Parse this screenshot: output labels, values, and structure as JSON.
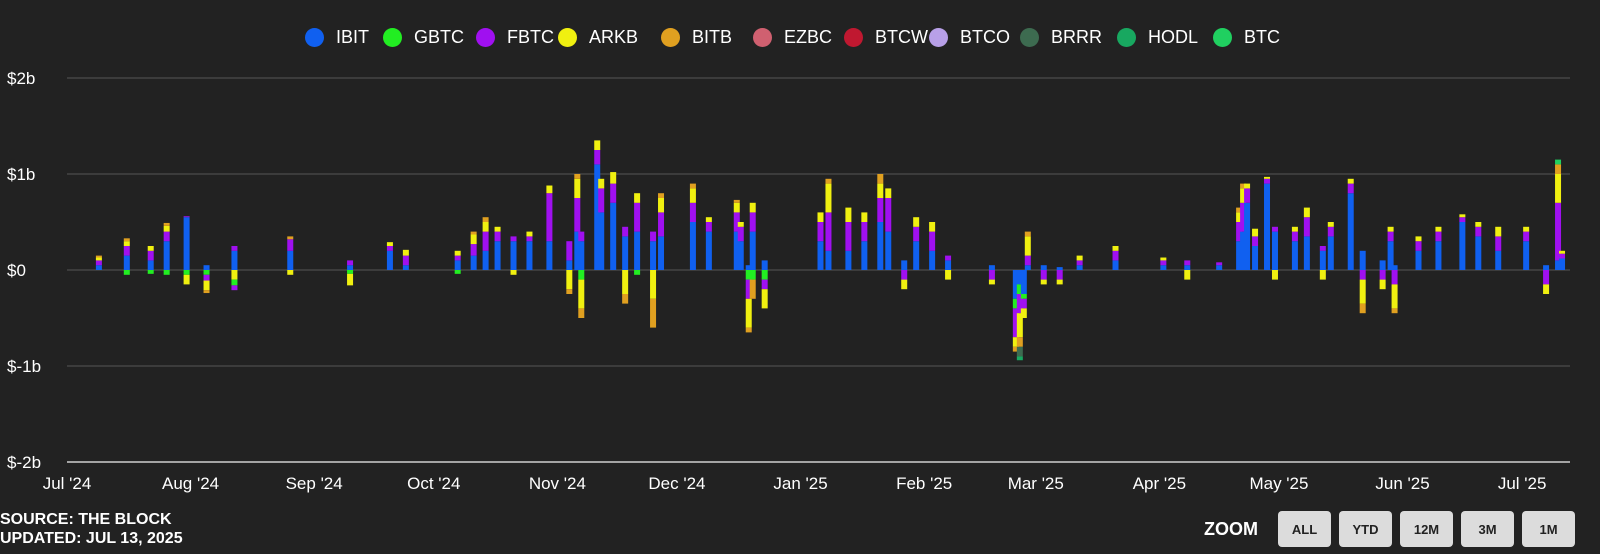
{
  "chart_data": {
    "type": "bar",
    "stacked": true,
    "title": "",
    "xlabel": "",
    "ylabel": "",
    "ylim": [
      -2,
      2
    ],
    "y_unit": "billion USD",
    "yticks": [
      "$2b",
      "$1b",
      "$0",
      "$-1b",
      "$-2b"
    ],
    "yticks_values": [
      2,
      1,
      0,
      -1,
      -2
    ],
    "xlim": [
      "2024-07-01",
      "2025-07-13"
    ],
    "xticks": [
      "Jul '24",
      "Aug '24",
      "Sep '24",
      "Oct '24",
      "Nov '24",
      "Dec '24",
      "Jan '25",
      "Feb '25",
      "Mar '25",
      "Apr '25",
      "May '25",
      "Jun '25",
      "Jul '25"
    ],
    "xticks_values": [
      "2024-07-01",
      "2024-08-01",
      "2024-09-01",
      "2024-10-01",
      "2024-11-01",
      "2024-12-01",
      "2025-01-01",
      "2025-02-01",
      "2025-03-01",
      "2025-04-01",
      "2025-05-01",
      "2025-06-01",
      "2025-07-01"
    ],
    "grid": true,
    "legend_position": "top",
    "series": [
      {
        "name": "IBIT",
        "color": "#1060f0"
      },
      {
        "name": "GBTC",
        "color": "#22ee22"
      },
      {
        "name": "FBTC",
        "color": "#a010f0"
      },
      {
        "name": "ARKB",
        "color": "#f0f010"
      },
      {
        "name": "BITB",
        "color": "#e0a020"
      },
      {
        "name": "EZBC",
        "color": "#d06070"
      },
      {
        "name": "BTCW",
        "color": "#c01830"
      },
      {
        "name": "BTCO",
        "color": "#b8a0e8"
      },
      {
        "name": "BRRR",
        "color": "#3d6b50"
      },
      {
        "name": "HODL",
        "color": "#18a860"
      },
      {
        "name": "BTC",
        "color": "#20d060"
      }
    ],
    "dates": [
      "2024-07-09",
      "2024-07-16",
      "2024-07-22",
      "2024-07-26",
      "2024-07-31",
      "2024-08-05",
      "2024-08-12",
      "2024-08-26",
      "2024-09-10",
      "2024-09-20",
      "2024-09-24",
      "2024-10-07",
      "2024-10-11",
      "2024-10-14",
      "2024-10-17",
      "2024-10-21",
      "2024-10-25",
      "2024-10-30",
      "2024-11-04",
      "2024-11-06",
      "2024-11-07",
      "2024-11-11",
      "2024-11-12",
      "2024-11-15",
      "2024-11-18",
      "2024-11-21",
      "2024-11-25",
      "2024-11-27",
      "2024-12-05",
      "2024-12-09",
      "2024-12-16",
      "2024-12-17",
      "2024-12-19",
      "2024-12-20",
      "2024-12-23",
      "2025-01-06",
      "2025-01-08",
      "2025-01-13",
      "2025-01-17",
      "2025-01-21",
      "2025-01-23",
      "2025-01-27",
      "2025-01-30",
      "2025-02-03",
      "2025-02-07",
      "2025-02-18",
      "2025-02-24",
      "2025-02-25",
      "2025-02-26",
      "2025-02-27",
      "2025-03-03",
      "2025-03-07",
      "2025-03-12",
      "2025-03-21",
      "2025-04-02",
      "2025-04-08",
      "2025-04-16",
      "2025-04-21",
      "2025-04-22",
      "2025-04-23",
      "2025-04-25",
      "2025-04-28",
      "2025-04-30",
      "2025-05-05",
      "2025-05-08",
      "2025-05-12",
      "2025-05-14",
      "2025-05-19",
      "2025-05-22",
      "2025-05-27",
      "2025-05-29",
      "2025-05-30",
      "2025-06-05",
      "2025-06-10",
      "2025-06-16",
      "2025-06-20",
      "2025-06-25",
      "2025-07-02",
      "2025-07-07",
      "2025-07-10",
      "2025-07-11"
    ],
    "stacks": [
      {
        "IBIT": 0.05,
        "FBTC": 0.05,
        "ARKB": 0.03,
        "BITB": 0.02
      },
      {
        "IBIT": 0.15,
        "FBTC": 0.1,
        "ARKB": 0.05,
        "BITB": 0.03,
        "GBTC": -0.05
      },
      {
        "IBIT": 0.1,
        "FBTC": 0.1,
        "ARKB": 0.05,
        "GBTC": -0.04
      },
      {
        "IBIT": 0.3,
        "FBTC": 0.1,
        "ARKB": 0.06,
        "BITB": 0.03,
        "GBTC": -0.05
      },
      {
        "IBIT": 0.55,
        "FBTC": 0.01,
        "GBTC": -0.05,
        "ARKB": -0.1
      },
      {
        "IBIT": 0.05,
        "GBTC": -0.05,
        "FBTC": -0.06,
        "ARKB": -0.1,
        "BITB": -0.03
      },
      {
        "IBIT": 0.2,
        "FBTC": 0.05,
        "ARKB": -0.1,
        "GBTC": -0.06,
        "FBTC_out": -0.05
      },
      {
        "IBIT": 0.2,
        "FBTC": 0.12,
        "BITB": 0.03,
        "ARKB": -0.05
      },
      {
        "IBIT": 0.05,
        "FBTC": 0.05,
        "GBTC": -0.04,
        "ARKB": -0.12
      },
      {
        "IBIT": 0.2,
        "FBTC": 0.05,
        "ARKB": 0.04
      },
      {
        "IBIT": 0.05,
        "FBTC": 0.1,
        "ARKB": 0.06
      },
      {
        "IBIT": 0.1,
        "FBTC": 0.05,
        "ARKB": 0.05,
        "GBTC": -0.04
      },
      {
        "IBIT": 0.15,
        "FBTC": 0.12,
        "ARKB": 0.1,
        "BITB": 0.03
      },
      {
        "IBIT": 0.2,
        "FBTC": 0.2,
        "ARKB": 0.1,
        "BITB": 0.05
      },
      {
        "IBIT": 0.3,
        "FBTC": 0.1,
        "ARKB": 0.05
      },
      {
        "IBIT": 0.3,
        "FBTC": 0.05,
        "ARKB": -0.05
      },
      {
        "IBIT": 0.3,
        "FBTC": 0.05,
        "ARKB": 0.05
      },
      {
        "IBIT": 0.3,
        "FBTC": 0.5,
        "ARKB": 0.08
      },
      {
        "IBIT": 0.1,
        "FBTC": 0.2,
        "ARKB": -0.2,
        "BITB": -0.05
      },
      {
        "IBIT": 0.4,
        "FBTC": 0.35,
        "ARKB": 0.2,
        "BITB": 0.05
      },
      {
        "IBIT": 0.3,
        "FBTC": 0.1,
        "GBTC": -0.1,
        "ARKB": -0.3,
        "BITB": -0.1
      },
      {
        "IBIT": 1.1,
        "FBTC": 0.15,
        "ARKB": 0.1
      },
      {
        "IBIT": 0.6,
        "FBTC": 0.25,
        "ARKB": 0.1
      },
      {
        "IBIT": 0.7,
        "FBTC": 0.2,
        "ARKB": 0.12
      },
      {
        "IBIT": 0.35,
        "FBTC": 0.1,
        "ARKB": -0.25,
        "BITB": -0.1
      },
      {
        "IBIT": 0.4,
        "FBTC": 0.3,
        "ARKB": 0.1,
        "GBTC": -0.05
      },
      {
        "IBIT": 0.3,
        "FBTC": 0.1,
        "ARKB": -0.3,
        "BITB": -0.3
      },
      {
        "IBIT": 0.35,
        "FBTC": 0.25,
        "ARKB": 0.15,
        "BITB": 0.05
      },
      {
        "IBIT": 0.5,
        "FBTC": 0.2,
        "ARKB": 0.15,
        "BITB": 0.05
      },
      {
        "IBIT": 0.4,
        "FBTC": 0.1,
        "ARKB": 0.05
      },
      {
        "IBIT": 0.4,
        "FBTC": 0.2,
        "ARKB": 0.1,
        "BITB": 0.03
      },
      {
        "IBIT": 0.3,
        "FBTC": 0.15,
        "ARKB": 0.05
      },
      {
        "IBIT": 0.05,
        "GBTC": -0.1,
        "FBTC": -0.2,
        "ARKB": -0.3,
        "BITB": -0.05
      },
      {
        "IBIT": 0.4,
        "FBTC": 0.2,
        "ARKB": 0.1,
        "GBTC": -0.1,
        "BITB": -0.2
      },
      {
        "IBIT": 0.1,
        "GBTC": -0.1,
        "FBTC": -0.1,
        "ARKB": -0.2
      },
      {
        "IBIT": 0.3,
        "FBTC": 0.2,
        "ARKB": 0.1
      },
      {
        "IBIT": 0.2,
        "FBTC": 0.4,
        "ARKB": 0.3,
        "BITB": 0.05
      },
      {
        "IBIT": 0.2,
        "FBTC": 0.3,
        "ARKB": 0.15
      },
      {
        "IBIT": 0.3,
        "FBTC": 0.2,
        "ARKB": 0.1
      },
      {
        "IBIT": 0.5,
        "FBTC": 0.25,
        "ARKB": 0.15,
        "BITB": 0.1
      },
      {
        "IBIT": 0.4,
        "FBTC": 0.35,
        "ARKB": 0.1
      },
      {
        "IBIT": 0.1,
        "FBTC": -0.1,
        "ARKB": -0.1
      },
      {
        "IBIT": 0.3,
        "FBTC": 0.15,
        "ARKB": 0.1
      },
      {
        "IBIT": 0.2,
        "FBTC": 0.2,
        "ARKB": 0.1
      },
      {
        "IBIT": 0.1,
        "FBTC": 0.05,
        "ARKB": -0.1
      },
      {
        "IBIT": 0.05,
        "FBTC": -0.1,
        "ARKB": -0.05
      },
      {
        "IBIT": -0.3,
        "GBTC": -0.1,
        "FBTC": -0.3,
        "ARKB": -0.1,
        "BITB": -0.05
      },
      {
        "IBIT": -0.15,
        "GBTC": -0.1,
        "FBTC": -0.2,
        "ARKB": -0.25,
        "BITB": -0.1,
        "BRRR": -0.1,
        "HODL": -0.04
      },
      {
        "IBIT": -0.25,
        "GBTC": -0.05,
        "FBTC": -0.1,
        "ARKB": -0.1
      },
      {
        "IBIT": 0.05,
        "FBTC": 0.1,
        "ARKB": 0.2,
        "BITB": 0.05
      },
      {
        "IBIT": 0.05,
        "FBTC": -0.1,
        "ARKB": -0.05
      },
      {
        "IBIT": 0.03,
        "FBTC": -0.1,
        "ARKB": -0.05
      },
      {
        "IBIT": 0.05,
        "FBTC": 0.05,
        "ARKB": 0.05
      },
      {
        "IBIT": 0.1,
        "FBTC": 0.1,
        "ARKB": 0.05
      },
      {
        "IBIT": 0.05,
        "FBTC": 0.05,
        "ARKB": 0.03
      },
      {
        "IBIT": 0.05,
        "FBTC": 0.05,
        "ARKB": -0.1
      },
      {
        "IBIT": 0.05,
        "FBTC": 0.03
      },
      {
        "IBIT": 0.3,
        "FBTC": 0.2,
        "ARKB": 0.1,
        "BITB": 0.05
      },
      {
        "IBIT": 0.4,
        "FBTC": 0.3,
        "ARKB": 0.15,
        "BITB": 0.05
      },
      {
        "IBIT": 0.7,
        "FBTC": 0.15,
        "ARKB": 0.05
      },
      {
        "IBIT": 0.25,
        "FBTC": 0.1,
        "ARKB": 0.08
      },
      {
        "IBIT": 0.9,
        "FBTC": 0.05,
        "ARKB": 0.02
      },
      {
        "IBIT": 0.4,
        "FBTC": 0.05,
        "ARKB": -0.1
      },
      {
        "IBIT": 0.3,
        "FBTC": 0.1,
        "ARKB": 0.05
      },
      {
        "IBIT": 0.35,
        "FBTC": 0.2,
        "ARKB": 0.1
      },
      {
        "IBIT": 0.2,
        "FBTC": 0.05,
        "ARKB": -0.1
      },
      {
        "IBIT": 0.35,
        "FBTC": 0.1,
        "ARKB": 0.05
      },
      {
        "IBIT": 0.8,
        "FBTC": 0.1,
        "ARKB": 0.05
      },
      {
        "IBIT": 0.2,
        "FBTC": -0.1,
        "ARKB": -0.25,
        "BITB": -0.1
      },
      {
        "IBIT": 0.1,
        "FBTC": -0.1,
        "ARKB": -0.1
      },
      {
        "IBIT": 0.3,
        "FBTC": 0.1,
        "ARKB": 0.05
      },
      {
        "IBIT": 0.05,
        "FBTC": -0.15,
        "ARKB": -0.25,
        "BITB": -0.05
      },
      {
        "IBIT": 0.2,
        "FBTC": 0.1,
        "ARKB": 0.05
      },
      {
        "IBIT": 0.3,
        "FBTC": 0.1,
        "ARKB": 0.05
      },
      {
        "IBIT": 0.5,
        "FBTC": 0.05,
        "ARKB": 0.03
      },
      {
        "IBIT": 0.35,
        "FBTC": 0.1,
        "ARKB": 0.05
      },
      {
        "IBIT": 0.2,
        "FBTC": 0.15,
        "ARKB": 0.1
      },
      {
        "IBIT": 0.3,
        "FBTC": 0.1,
        "ARKB": 0.05
      },
      {
        "IBIT": 0.05,
        "FBTC": -0.15,
        "ARKB": -0.1
      },
      {
        "IBIT": 0.1,
        "FBTC": 0.6,
        "ARKB": 0.3,
        "BITB": 0.1,
        "BTC": 0.05
      },
      {
        "IBIT": 0.12,
        "FBTC": 0.05,
        "ARKB": 0.03
      }
    ]
  },
  "source": {
    "line1": "SOURCE: THE BLOCK",
    "line2": "UPDATED: JUL 13, 2025"
  },
  "zoom": {
    "label": "ZOOM",
    "buttons": [
      "ALL",
      "YTD",
      "12M",
      "3M",
      "1M"
    ]
  }
}
